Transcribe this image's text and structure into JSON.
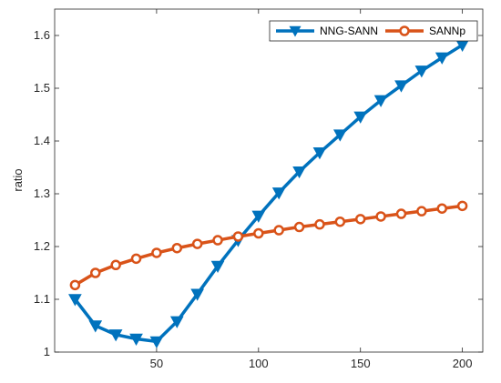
{
  "chart_data": {
    "type": "line",
    "title": "",
    "xlabel": "",
    "ylabel": "ratio",
    "xlim": [
      0,
      210
    ],
    "ylim": [
      1,
      1.65
    ],
    "xticks": [
      "50",
      "100",
      "150",
      "200"
    ],
    "yticks": [
      "1",
      "1.1",
      "1.2",
      "1.3",
      "1.4",
      "1.5",
      "1.6"
    ],
    "grid": false,
    "legend_position": "top-right",
    "x": [
      10,
      20,
      30,
      40,
      50,
      60,
      70,
      80,
      90,
      100,
      110,
      120,
      130,
      140,
      150,
      160,
      170,
      180,
      190,
      200
    ],
    "series": [
      {
        "name": "NNG-SANN",
        "color": "#0072BD",
        "marker": "triangle-down",
        "values": [
          1.1,
          1.05,
          1.033,
          1.025,
          1.02,
          1.058,
          1.11,
          1.163,
          1.212,
          1.258,
          1.302,
          1.342,
          1.378,
          1.412,
          1.446,
          1.477,
          1.505,
          1.533,
          1.558,
          1.582
        ]
      },
      {
        "name": "SANNp",
        "color": "#D95319",
        "marker": "circle",
        "values": [
          1.127,
          1.15,
          1.165,
          1.177,
          1.188,
          1.197,
          1.205,
          1.212,
          1.219,
          1.225,
          1.231,
          1.237,
          1.242,
          1.247,
          1.252,
          1.257,
          1.262,
          1.267,
          1.272,
          1.277
        ]
      }
    ]
  }
}
